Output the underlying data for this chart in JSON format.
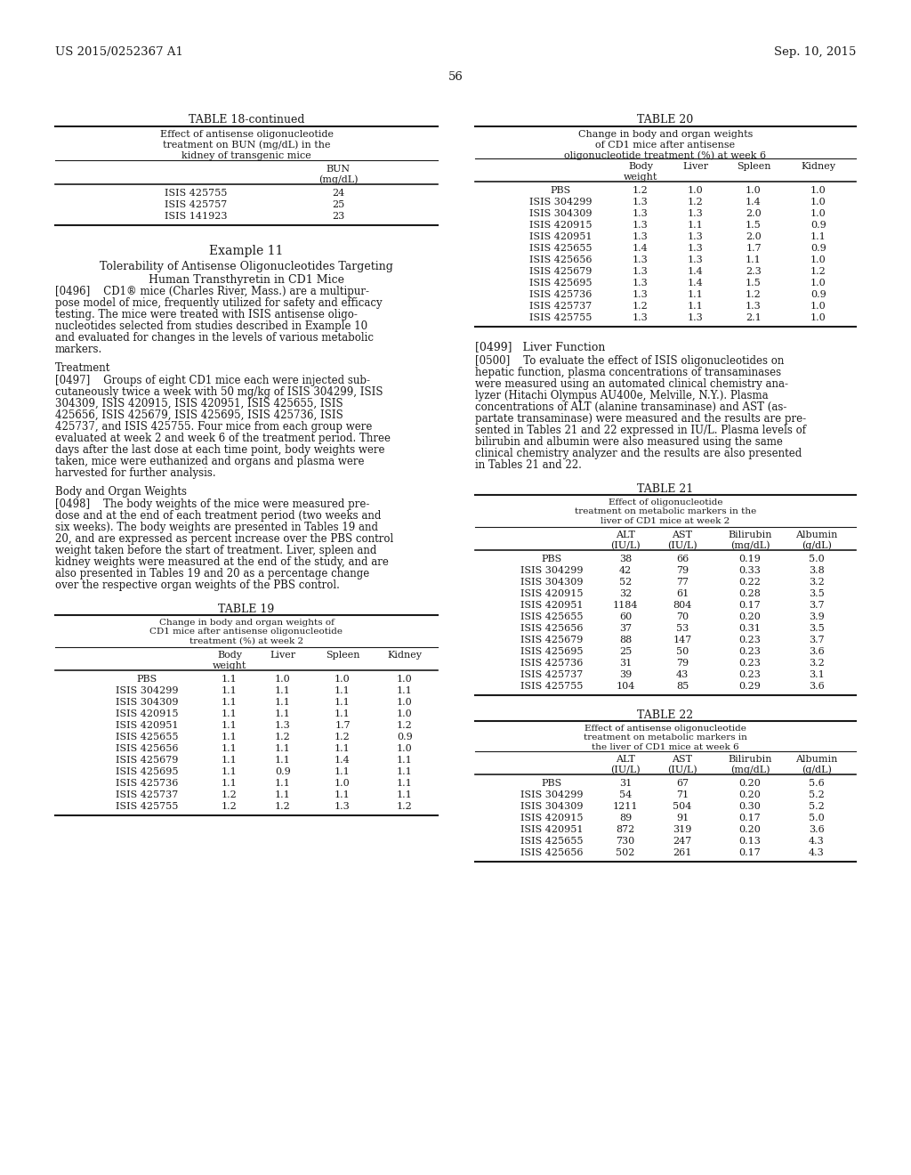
{
  "bg_color": "#ffffff",
  "text_color": "#000000",
  "header_left": "US 2015/0252367 A1",
  "header_right": "Sep. 10, 2015",
  "page_number": "56",
  "table18_title": "TABLE 18-continued",
  "table18_subtitle": "Effect of antisense oligonucleotide\ntreatment on BUN (mg/dL) in the\nkidney of transgenic mice",
  "table18_col_header": "BUN\n(mg/dL)",
  "table18_rows": [
    [
      "ISIS 425755",
      "24"
    ],
    [
      "ISIS 425757",
      "25"
    ],
    [
      "ISIS 141923",
      "23"
    ]
  ],
  "example11_title": "Example 11",
  "example11_subtitle": "Tolerability of Antisense Oligonucleotides Targeting\nHuman Transthyretin in CD1 Mice",
  "para0496_lines": [
    "[0496]    CD1® mice (Charles River, Mass.) are a multipur-",
    "pose model of mice, frequently utilized for safety and efficacy",
    "testing. The mice were treated with ISIS antisense oligo-",
    "nucleotides selected from studies described in Example 10",
    "and evaluated for changes in the levels of various metabolic",
    "markers."
  ],
  "treatment_heading": "Treatment",
  "para0497_lines": [
    "[0497]    Groups of eight CD1 mice each were injected sub-",
    "cutaneously twice a week with 50 mg/kg of ISIS 304299, ISIS",
    "304309, ISIS 420915, ISIS 420951, ISIS 425655, ISIS",
    "425656, ISIS 425679, ISIS 425695, ISIS 425736, ISIS",
    "425737, and ISIS 425755. Four mice from each group were",
    "evaluated at week 2 and week 6 of the treatment period. Three",
    "days after the last dose at each time point, body weights were",
    "taken, mice were euthanized and organs and plasma were",
    "harvested for further analysis."
  ],
  "body_organ_heading": "Body and Organ Weights",
  "para0498_lines": [
    "[0498]    The body weights of the mice were measured pre-",
    "dose and at the end of each treatment period (two weeks and",
    "six weeks). The body weights are presented in Tables 19 and",
    "20, and are expressed as percent increase over the PBS control",
    "weight taken before the start of treatment. Liver, spleen and",
    "kidney weights were measured at the end of the study, and are",
    "also presented in Tables 19 and 20 as a percentage change",
    "over the respective organ weights of the PBS control."
  ],
  "table19_title": "TABLE 19",
  "table19_subtitle": "Change in body and organ weights of\nCD1 mice after antisense oligonucleotide\ntreatment (%) at week 2",
  "table19_col_headers": [
    "Body\nweight",
    "Liver",
    "Spleen",
    "Kidney"
  ],
  "table19_rows": [
    [
      "PBS",
      "1.1",
      "1.0",
      "1.0",
      "1.0"
    ],
    [
      "ISIS 304299",
      "1.1",
      "1.1",
      "1.1",
      "1.1"
    ],
    [
      "ISIS 304309",
      "1.1",
      "1.1",
      "1.1",
      "1.0"
    ],
    [
      "ISIS 420915",
      "1.1",
      "1.1",
      "1.1",
      "1.0"
    ],
    [
      "ISIS 420951",
      "1.1",
      "1.3",
      "1.7",
      "1.2"
    ],
    [
      "ISIS 425655",
      "1.1",
      "1.2",
      "1.2",
      "0.9"
    ],
    [
      "ISIS 425656",
      "1.1",
      "1.1",
      "1.1",
      "1.0"
    ],
    [
      "ISIS 425679",
      "1.1",
      "1.1",
      "1.4",
      "1.1"
    ],
    [
      "ISIS 425695",
      "1.1",
      "0.9",
      "1.1",
      "1.1"
    ],
    [
      "ISIS 425736",
      "1.1",
      "1.1",
      "1.0",
      "1.1"
    ],
    [
      "ISIS 425737",
      "1.2",
      "1.1",
      "1.1",
      "1.1"
    ],
    [
      "ISIS 425755",
      "1.2",
      "1.2",
      "1.3",
      "1.2"
    ]
  ],
  "table20_title": "TABLE 20",
  "table20_subtitle": "Change in body and organ weights\nof CD1 mice after antisense\noligonucleotide treatment (%) at week 6",
  "table20_col_headers": [
    "Body\nweight",
    "Liver",
    "Spleen",
    "Kidney"
  ],
  "table20_rows": [
    [
      "PBS",
      "1.2",
      "1.0",
      "1.0",
      "1.0"
    ],
    [
      "ISIS 304299",
      "1.3",
      "1.2",
      "1.4",
      "1.0"
    ],
    [
      "ISIS 304309",
      "1.3",
      "1.3",
      "2.0",
      "1.0"
    ],
    [
      "ISIS 420915",
      "1.3",
      "1.1",
      "1.5",
      "0.9"
    ],
    [
      "ISIS 420951",
      "1.3",
      "1.3",
      "2.0",
      "1.1"
    ],
    [
      "ISIS 425655",
      "1.4",
      "1.3",
      "1.7",
      "0.9"
    ],
    [
      "ISIS 425656",
      "1.3",
      "1.3",
      "1.1",
      "1.0"
    ],
    [
      "ISIS 425679",
      "1.3",
      "1.4",
      "2.3",
      "1.2"
    ],
    [
      "ISIS 425695",
      "1.3",
      "1.4",
      "1.5",
      "1.0"
    ],
    [
      "ISIS 425736",
      "1.3",
      "1.1",
      "1.2",
      "0.9"
    ],
    [
      "ISIS 425737",
      "1.2",
      "1.1",
      "1.3",
      "1.0"
    ],
    [
      "ISIS 425755",
      "1.3",
      "1.3",
      "2.1",
      "1.0"
    ]
  ],
  "para0499_heading": "[0499]   Liver Function",
  "para0500_lines": [
    "[0500]    To evaluate the effect of ISIS oligonucleotides on",
    "hepatic function, plasma concentrations of transaminases",
    "were measured using an automated clinical chemistry ana-",
    "lyzer (Hitachi Olympus AU400e, Melville, N.Y.). Plasma",
    "concentrations of ALT (alanine transaminase) and AST (as-",
    "partate transaminase) were measured and the results are pre-",
    "sented in Tables 21 and 22 expressed in IU/L. Plasma levels of",
    "bilirubin and albumin were also measured using the same",
    "clinical chemistry analyzer and the results are also presented",
    "in Tables 21 and 22."
  ],
  "table21_title": "TABLE 21",
  "table21_subtitle": "Effect of oligonucleotide\ntreatment on metabolic markers in the\nliver of CD1 mice at week 2",
  "table21_col_headers": [
    "ALT\n(IU/L)",
    "AST\n(IU/L)",
    "Bilirubin\n(mg/dL)",
    "Albumin\n(g/dL)"
  ],
  "table21_rows": [
    [
      "PBS",
      "38",
      "66",
      "0.19",
      "5.0"
    ],
    [
      "ISIS 304299",
      "42",
      "79",
      "0.33",
      "3.8"
    ],
    [
      "ISIS 304309",
      "52",
      "77",
      "0.22",
      "3.2"
    ],
    [
      "ISIS 420915",
      "32",
      "61",
      "0.28",
      "3.5"
    ],
    [
      "ISIS 420951",
      "1184",
      "804",
      "0.17",
      "3.7"
    ],
    [
      "ISIS 425655",
      "60",
      "70",
      "0.20",
      "3.9"
    ],
    [
      "ISIS 425656",
      "37",
      "53",
      "0.31",
      "3.5"
    ],
    [
      "ISIS 425679",
      "88",
      "147",
      "0.23",
      "3.7"
    ],
    [
      "ISIS 425695",
      "25",
      "50",
      "0.23",
      "3.6"
    ],
    [
      "ISIS 425736",
      "31",
      "79",
      "0.23",
      "3.2"
    ],
    [
      "ISIS 425737",
      "39",
      "43",
      "0.23",
      "3.1"
    ],
    [
      "ISIS 425755",
      "104",
      "85",
      "0.29",
      "3.6"
    ]
  ],
  "table22_title": "TABLE 22",
  "table22_subtitle": "Effect of antisense oligonucleotide\ntreatment on metabolic markers in\nthe liver of CD1 mice at week 6",
  "table22_col_headers": [
    "ALT\n(IU/L)",
    "AST\n(IU/L)",
    "Bilirubin\n(mg/dL)",
    "Albumin\n(g/dL)"
  ],
  "table22_rows": [
    [
      "PBS",
      "31",
      "67",
      "0.20",
      "5.6"
    ],
    [
      "ISIS 304299",
      "54",
      "71",
      "0.20",
      "5.2"
    ],
    [
      "ISIS 304309",
      "1211",
      "504",
      "0.30",
      "5.2"
    ],
    [
      "ISIS 420915",
      "89",
      "91",
      "0.17",
      "5.0"
    ],
    [
      "ISIS 420951",
      "872",
      "319",
      "0.20",
      "3.6"
    ],
    [
      "ISIS 425655",
      "730",
      "247",
      "0.13",
      "4.3"
    ],
    [
      "ISIS 425656",
      "502",
      "261",
      "0.17",
      "4.3"
    ]
  ]
}
